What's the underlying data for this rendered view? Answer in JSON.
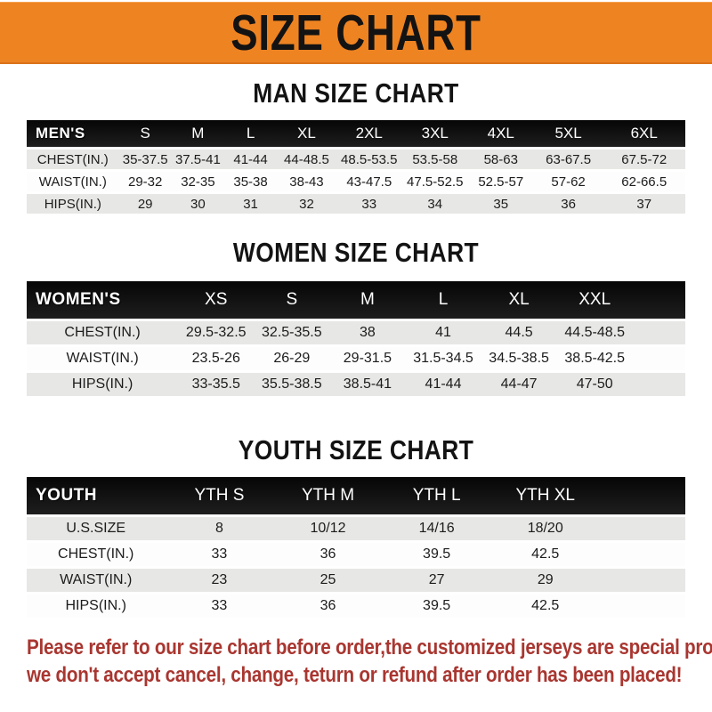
{
  "banner": {
    "title": "SIZE CHART"
  },
  "sections": [
    {
      "id": "man",
      "heading": "MAN SIZE CHART",
      "header_label": "MEN'S",
      "columns": [
        "S",
        "M",
        "L",
        "XL",
        "2XL",
        "3XL",
        "4XL",
        "5XL",
        "6XL"
      ],
      "rows": [
        {
          "label": "CHEST(IN.)",
          "values": [
            "35-37.5",
            "37.5-41",
            "41-44",
            "44-48.5",
            "48.5-53.5",
            "53.5-58",
            "58-63",
            "63-67.5",
            "67.5-72"
          ]
        },
        {
          "label": "WAIST(IN.)",
          "values": [
            "29-32",
            "32-35",
            "35-38",
            "38-43",
            "43-47.5",
            "47.5-52.5",
            "52.5-57",
            "57-62",
            "62-66.5"
          ]
        },
        {
          "label": "HIPS(IN.)",
          "values": [
            "29",
            "30",
            "31",
            "32",
            "33",
            "34",
            "35",
            "36",
            "37"
          ]
        }
      ]
    },
    {
      "id": "women",
      "heading": "WOMEN SIZE CHART",
      "header_label": "WOMEN'S",
      "columns": [
        "XS",
        "S",
        "M",
        "L",
        "XL",
        "XXL"
      ],
      "rows": [
        {
          "label": "CHEST(IN.)",
          "values": [
            "29.5-32.5",
            "32.5-35.5",
            "38",
            "41",
            "44.5",
            "44.5-48.5"
          ]
        },
        {
          "label": "WAIST(IN.)",
          "values": [
            "23.5-26",
            "26-29",
            "29-31.5",
            "31.5-34.5",
            "34.5-38.5",
            "38.5-42.5"
          ]
        },
        {
          "label": "HIPS(IN.)",
          "values": [
            "33-35.5",
            "35.5-38.5",
            "38.5-41",
            "41-44",
            "44-47",
            "47-50"
          ]
        }
      ]
    },
    {
      "id": "youth",
      "heading": "YOUTH SIZE CHART",
      "header_label": "YOUTH",
      "columns": [
        "YTH S",
        "YTH M",
        "YTH L",
        "YTH XL"
      ],
      "rows": [
        {
          "label": "U.S.SIZE",
          "values": [
            "8",
            "10/12",
            "14/16",
            "18/20"
          ]
        },
        {
          "label": "CHEST(IN.)",
          "values": [
            "33",
            "36",
            "39.5",
            "42.5"
          ]
        },
        {
          "label": "WAIST(IN.)",
          "values": [
            "23",
            "25",
            "27",
            "29"
          ]
        },
        {
          "label": "HIPS(IN.)",
          "values": [
            "33",
            "36",
            "39.5",
            "42.5"
          ]
        }
      ]
    }
  ],
  "footer": {
    "line1": "Please refer to our size chart before order,the customized jerseys are special products,",
    "line2": "we don't accept cancel, change, teturn or refund after order has been placed!"
  },
  "colors": {
    "banner_orange": "#ee8322",
    "header_black": "#141414",
    "row_gray": "#e7e7e5",
    "row_white": "#fdfdfd",
    "notice_red": "#a93630",
    "title_black": "#131313"
  }
}
